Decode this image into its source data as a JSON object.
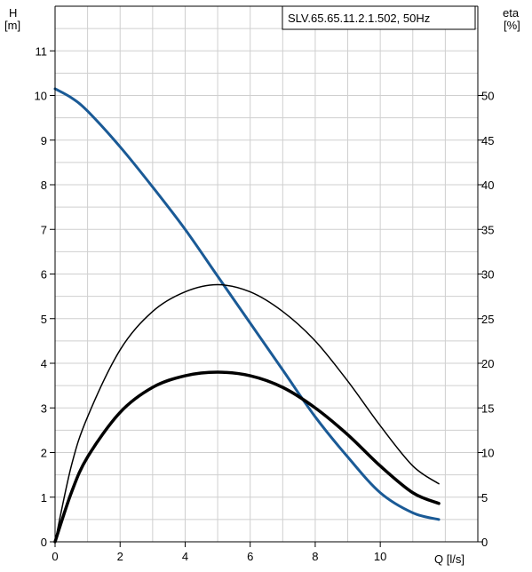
{
  "chart_data": {
    "type": "line",
    "title": "SLV.65.65.11.2.1.502, 50Hz",
    "left_axis": {
      "label_line1": "H",
      "label_line2": "[m]",
      "ylim": [
        0,
        12
      ],
      "ticks": [
        0,
        1,
        2,
        3,
        4,
        5,
        6,
        7,
        8,
        9,
        10,
        11
      ]
    },
    "right_axis": {
      "label_line1": "eta",
      "label_line2": "[%]",
      "ylim": [
        0,
        60
      ],
      "ticks": [
        0,
        5,
        10,
        15,
        20,
        25,
        30,
        35,
        40,
        45,
        50
      ]
    },
    "x_axis": {
      "label": "Q [l/s]",
      "xlim": [
        0,
        13
      ],
      "ticks": [
        0,
        2,
        4,
        6,
        8,
        10
      ]
    },
    "grid": true,
    "series": [
      {
        "axis": "left",
        "color": "#1a5a96",
        "points": [
          [
            0,
            10.15
          ],
          [
            0.5,
            9.95
          ],
          [
            1,
            9.65
          ],
          [
            2,
            8.85
          ],
          [
            3,
            7.95
          ],
          [
            4,
            7.0
          ],
          [
            5,
            5.95
          ],
          [
            6,
            4.9
          ],
          [
            7,
            3.85
          ],
          [
            8,
            2.8
          ],
          [
            9,
            1.9
          ],
          [
            10,
            1.1
          ],
          [
            11,
            0.65
          ],
          [
            11.8,
            0.5
          ]
        ]
      },
      {
        "axis": "right",
        "color": "#000000",
        "width": "thin",
        "points": [
          [
            0,
            0
          ],
          [
            0.5,
            8.5
          ],
          [
            1,
            14.0
          ],
          [
            2,
            21.5
          ],
          [
            3,
            25.8
          ],
          [
            4,
            28.0
          ],
          [
            5,
            28.8
          ],
          [
            6,
            28.0
          ],
          [
            7,
            25.8
          ],
          [
            8,
            22.5
          ],
          [
            9,
            18.0
          ],
          [
            10,
            13.0
          ],
          [
            11,
            8.5
          ],
          [
            11.8,
            6.5
          ]
        ]
      },
      {
        "axis": "right",
        "color": "#000000",
        "width": "thick",
        "points": [
          [
            0,
            0
          ],
          [
            0.5,
            5.5
          ],
          [
            1,
            9.5
          ],
          [
            2,
            14.5
          ],
          [
            3,
            17.3
          ],
          [
            4,
            18.6
          ],
          [
            5,
            19.0
          ],
          [
            6,
            18.6
          ],
          [
            7,
            17.3
          ],
          [
            8,
            15.0
          ],
          [
            9,
            12.0
          ],
          [
            10,
            8.5
          ],
          [
            11,
            5.5
          ],
          [
            11.8,
            4.3
          ]
        ]
      }
    ]
  }
}
